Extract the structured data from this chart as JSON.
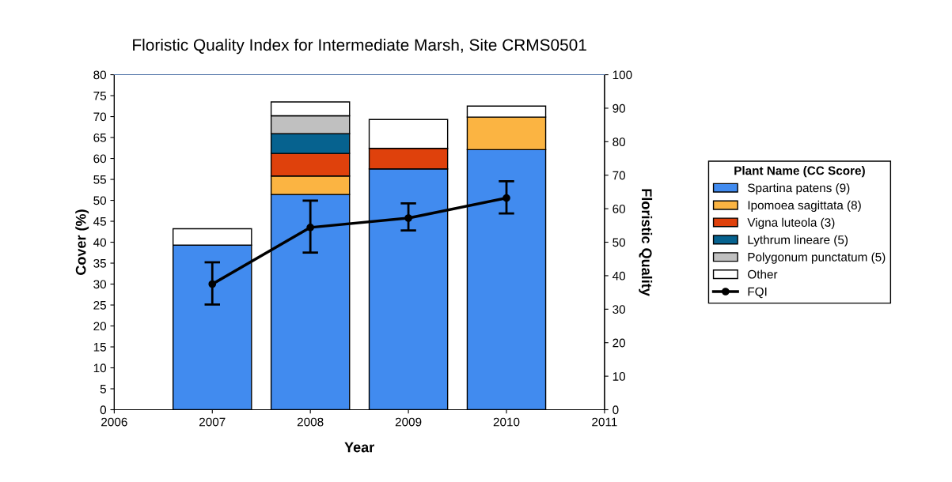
{
  "chart_data": {
    "type": "bar",
    "stacked": true,
    "title": "Floristic Quality Index for Intermediate Marsh, Site CRMS0501",
    "xlabel": "Year",
    "ylabel": "Cover (%)",
    "y2label": "Floristic Quality",
    "legend_title": "Plant Name (CC Score)",
    "legend": "right",
    "x": [
      2007,
      2008,
      2009,
      2010
    ],
    "xlim": [
      2006,
      2011
    ],
    "xticks": [
      2006,
      2007,
      2008,
      2009,
      2010,
      2011
    ],
    "ylim": [
      0,
      80
    ],
    "yticks": [
      0,
      5,
      10,
      15,
      20,
      25,
      30,
      35,
      40,
      45,
      50,
      55,
      60,
      65,
      70,
      75,
      80
    ],
    "y2lim": [
      0,
      100
    ],
    "y2ticks": [
      0,
      10,
      20,
      30,
      40,
      50,
      60,
      70,
      80,
      90,
      100
    ],
    "series": [
      {
        "name": "Spartina patens (9)",
        "color": "#418bef",
        "values": [
          39.3,
          51.4,
          57.5,
          62.1
        ]
      },
      {
        "name": "Ipomoea sagittata (8)",
        "color": "#fbb442",
        "values": [
          null,
          4.4,
          null,
          7.8
        ]
      },
      {
        "name": "Vigna luteola (3)",
        "color": "#df410c",
        "values": [
          null,
          5.4,
          4.9,
          null
        ]
      },
      {
        "name": "Lythrum lineare (5)",
        "color": "#06628f",
        "values": [
          null,
          4.7,
          null,
          null
        ]
      },
      {
        "name": "Polygonum punctatum (5)",
        "color": "#c0c0c0",
        "values": [
          null,
          4.3,
          null,
          null
        ]
      },
      {
        "name": "Other",
        "color": "#ffffff",
        "values": [
          3.9,
          3.3,
          6.9,
          2.6
        ]
      },
      {
        "name": "FQI",
        "type": "line",
        "axis": "y2",
        "color": "#000000",
        "marker": "circle",
        "values": [
          37.5,
          54.4,
          57.2,
          63.2
        ],
        "errors": [
          [
            31.4,
            44.0
          ],
          [
            46.9,
            62.4
          ],
          [
            53.5,
            61.6
          ],
          [
            58.6,
            68.2
          ]
        ]
      }
    ]
  }
}
